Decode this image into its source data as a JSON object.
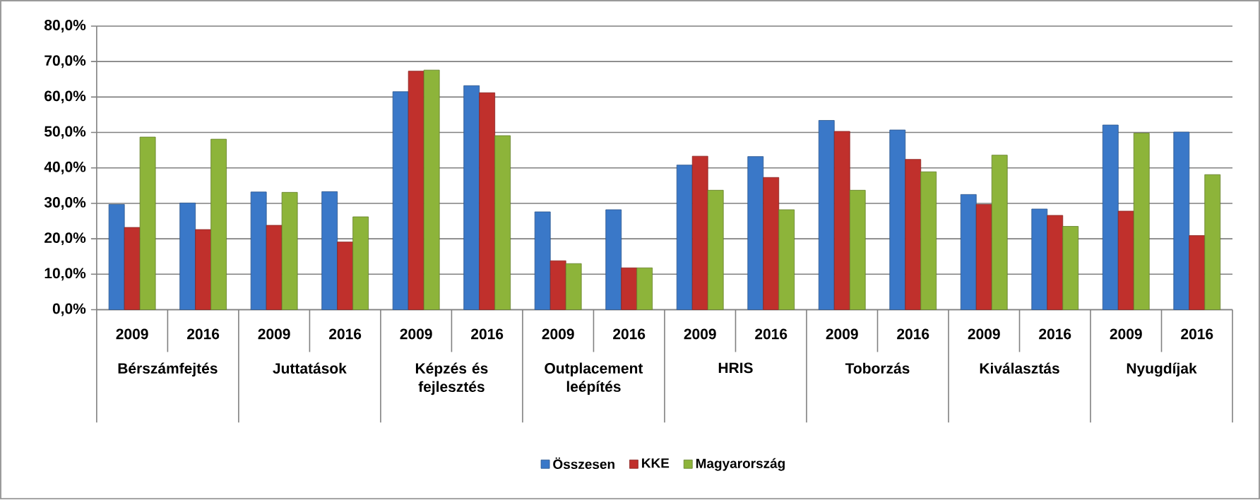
{
  "chart_data": {
    "type": "bar",
    "categories": [
      "2009",
      "2016",
      "2009",
      "2016",
      "2009",
      "2016",
      "2009",
      "2016",
      "2009",
      "2016",
      "2009",
      "2016",
      "2009",
      "2016",
      "2009",
      "2016"
    ],
    "annotations": [
      "Bérszámfejtés",
      "Juttatások",
      "Képzés és fejlesztés",
      "Outplacement leépítés",
      "HRIS",
      "Toborzás",
      "Kiválasztás",
      "Nyugdíjak"
    ],
    "series": [
      {
        "name": "Összesen",
        "color": "#3a78c8",
        "values": [
          29.7,
          30.1,
          33.2,
          33.3,
          61.5,
          63.2,
          27.6,
          28.2,
          40.8,
          43.2,
          53.4,
          50.7,
          32.5,
          28.4,
          52.1,
          50.1
        ]
      },
      {
        "name": "KKE",
        "color": "#c0302c",
        "values": [
          23.2,
          22.6,
          23.8,
          19.1,
          67.3,
          61.2,
          13.8,
          11.8,
          43.3,
          37.3,
          50.3,
          42.4,
          29.7,
          26.6,
          27.8,
          20.9
        ]
      },
      {
        "name": "Magyarország",
        "color": "#8db43a",
        "values": [
          48.7,
          48.1,
          33.1,
          26.2,
          67.6,
          49.1,
          13.0,
          11.8,
          33.7,
          28.2,
          33.7,
          38.9,
          43.6,
          23.5,
          49.8,
          38.1
        ]
      }
    ],
    "ylim": [
      0,
      80
    ],
    "yticks": [
      {
        "value": 0,
        "label": "0,0%"
      },
      {
        "value": 10,
        "label": "10,0%"
      },
      {
        "value": 20,
        "label": "20,0%"
      },
      {
        "value": 30,
        "label": "30,0%"
      },
      {
        "value": 40,
        "label": "40,0%"
      },
      {
        "value": 50,
        "label": "50,0%"
      },
      {
        "value": 60,
        "label": "60,0%"
      },
      {
        "value": 70,
        "label": "70,0%"
      },
      {
        "value": 80,
        "label": "80,0%"
      }
    ],
    "grid": "y",
    "legend": "bottom"
  }
}
